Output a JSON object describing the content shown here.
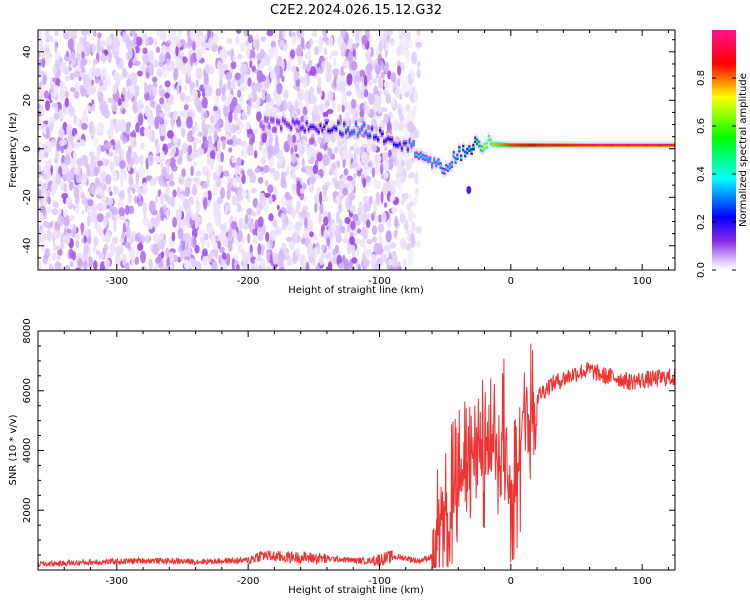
{
  "title": "C2E2.2024.026.15.12.G32",
  "chart_data": [
    {
      "type": "heatmap",
      "xlabel": "Height of straight line (km)",
      "ylabel": "Frequency (Hz)",
      "xlim": [
        -360,
        125
      ],
      "ylim": [
        -50,
        49
      ],
      "xticks": [
        -300,
        -200,
        -100,
        0,
        100
      ],
      "yticks": [
        -40,
        -20,
        0,
        20,
        40
      ],
      "colorbar": {
        "label": "Normalized spectral amplitude",
        "range": [
          0.0,
          1.0
        ],
        "ticks": [
          0.0,
          0.2,
          0.4,
          0.6,
          0.8
        ],
        "colormap": [
          "#ffffff",
          "#d9c2f7",
          "#8a2be2",
          "#0000ff",
          "#00ffff",
          "#00ff00",
          "#ffff00",
          "#ff0000",
          "#ff1493"
        ]
      },
      "noise_region_x": [
        -360,
        -70
      ],
      "signal_track": [
        {
          "x": -190,
          "y": 10,
          "amp": 0.2
        },
        {
          "x": -115,
          "y": 8,
          "amp": 0.45
        },
        {
          "x": -95,
          "y": 5,
          "amp": 0.35
        },
        {
          "x": -80,
          "y": 2,
          "amp": 0.4
        },
        {
          "x": -70,
          "y": -1,
          "amp": 0.5
        },
        {
          "x": -60,
          "y": -6,
          "amp": 0.45
        },
        {
          "x": -52,
          "y": -9,
          "amp": 0.5
        },
        {
          "x": -45,
          "y": -5,
          "amp": 0.5
        },
        {
          "x": -38,
          "y": -2,
          "amp": 0.55
        },
        {
          "x": -30,
          "y": 1,
          "amp": 0.6
        },
        {
          "x": -20,
          "y": 2,
          "amp": 0.75
        },
        {
          "x": 0,
          "y": 1.5,
          "amp": 0.85
        },
        {
          "x": 25,
          "y": 1.5,
          "amp": 0.9
        },
        {
          "x": 60,
          "y": 1.5,
          "amp": 0.95
        },
        {
          "x": 100,
          "y": 1.5,
          "amp": 0.95
        },
        {
          "x": 125,
          "y": 1.5,
          "amp": 0.95
        }
      ]
    },
    {
      "type": "line",
      "xlabel": "Height of straight line (km)",
      "ylabel": "SNR (10 * v/v)",
      "xlim": [
        -360,
        125
      ],
      "ylim": [
        0,
        8000
      ],
      "xticks": [
        -300,
        -200,
        -100,
        0,
        100
      ],
      "yticks": [
        2000,
        4000,
        6000,
        8000
      ],
      "series": [
        {
          "color": "#ee3333",
          "x": [
            -360,
            -340,
            -320,
            -300,
            -280,
            -260,
            -240,
            -220,
            -200,
            -190,
            -180,
            -170,
            -160,
            -150,
            -140,
            -130,
            -120,
            -110,
            -100,
            -90,
            -80,
            -70,
            -60,
            -55,
            -50,
            -45,
            -40,
            -35,
            -30,
            -25,
            -20,
            -15,
            -10,
            -5,
            0,
            5,
            10,
            15,
            20,
            25,
            30,
            40,
            50,
            60,
            70,
            80,
            90,
            100,
            110,
            120,
            125
          ],
          "y": [
            200,
            220,
            260,
            280,
            320,
            300,
            280,
            300,
            320,
            500,
            450,
            430,
            420,
            400,
            380,
            360,
            320,
            300,
            350,
            450,
            400,
            300,
            450,
            900,
            1500,
            2400,
            3000,
            3400,
            3600,
            4200,
            3800,
            4300,
            4000,
            4600,
            2600,
            3200,
            4500,
            5400,
            5800,
            6000,
            6200,
            6400,
            6600,
            6700,
            6500,
            6450,
            6300,
            6350,
            6400,
            6450,
            6450
          ]
        }
      ]
    }
  ]
}
